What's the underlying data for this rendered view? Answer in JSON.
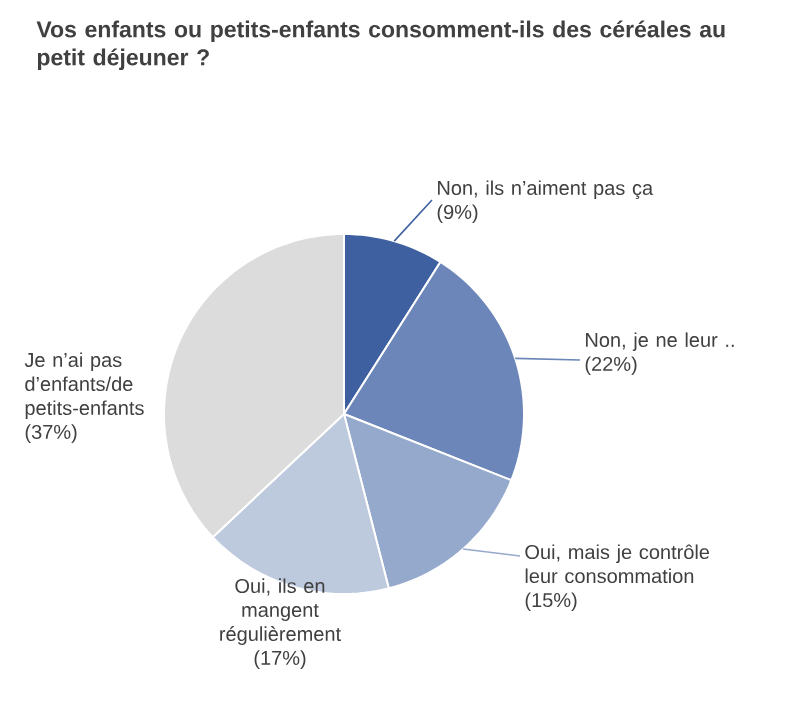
{
  "chart_data": {
    "type": "pie",
    "title": "Vos enfants ou petits-enfants consomment-ils des céréales au petit déjeuner ?",
    "categories": [
      "Non, ils n’aiment pas ça",
      "Non, je ne leur ..",
      "Oui, mais je contrôle leur consommation",
      "Oui, ils en mangent régulièrement",
      "Je n’ai pas d’enfants/de petits-enfants"
    ],
    "values": [
      9,
      22,
      15,
      17,
      37
    ],
    "value_labels": [
      "(9%)",
      "(22%)",
      "(15%)",
      "(17%)",
      "(37%)"
    ],
    "colors": [
      "#3e60a0",
      "#6c86b9",
      "#95a9cc",
      "#bdc9dd",
      "#dcdcdc"
    ]
  }
}
